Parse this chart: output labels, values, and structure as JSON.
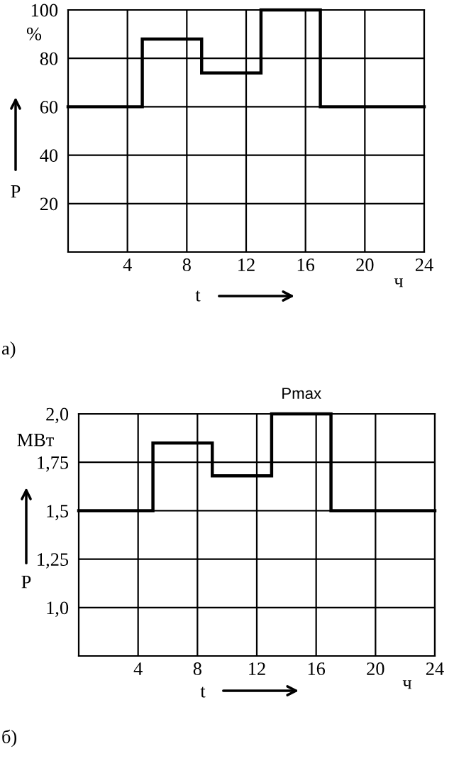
{
  "chart_data": [
    {
      "type": "step",
      "xlabel": "t",
      "ylabel": "P",
      "x": [
        0,
        5,
        9,
        13,
        17,
        24
      ],
      "series": [
        {
          "color": "#000000",
          "values": [
            60,
            88,
            74,
            100,
            60,
            60
          ]
        }
      ],
      "xlim": [
        0,
        24
      ],
      "xticks": [
        4,
        8,
        12,
        16,
        20,
        24
      ],
      "ylim": [
        0,
        100
      ],
      "yticks": [
        20,
        40,
        60,
        80,
        100
      ],
      "grid": true,
      "line_style": "solid",
      "annotations": [
        "%",
        "ч",
        "а)"
      ]
    },
    {
      "type": "step",
      "xlabel": "t",
      "ylabel": "P",
      "x": [
        0,
        5,
        9,
        13,
        17,
        24
      ],
      "series": [
        {
          "color": "#000000",
          "values": [
            1.5,
            1.85,
            1.68,
            2.0,
            1.5,
            1.5
          ]
        }
      ],
      "xlim": [
        0,
        24
      ],
      "xticks": [
        4,
        8,
        12,
        16,
        20,
        24
      ],
      "ylim": [
        0.75,
        2.0
      ],
      "yticks": [
        {
          "value": 1.0,
          "label": "1,0"
        },
        {
          "value": 1.25,
          "label": "1,25"
        },
        {
          "value": 1.5,
          "label": "1,5"
        },
        {
          "value": 1.75,
          "label": "1,75"
        },
        {
          "value": 2.0,
          "label": "2,0"
        }
      ],
      "grid": true,
      "line_style": "solid",
      "annotations": [
        {
          "text": "Pmax",
          "x": 15,
          "y": 2.0
        },
        "МВт",
        "ч",
        "б)"
      ]
    }
  ]
}
